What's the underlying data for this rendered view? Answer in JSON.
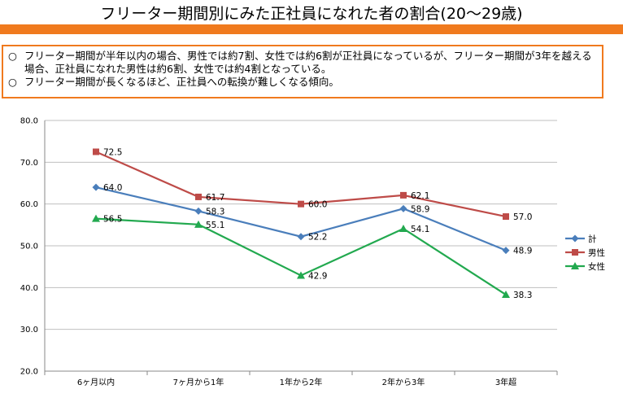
{
  "page": {
    "title": "フリーター期間別にみた正社員になれた者の割合(20～29歳)",
    "bullet_marker": "○",
    "summary": [
      "フリーター期間が半年以内の場合、男性では約7割、女性では約6割が正社員になっているが、フリーター期間が3年を越える場合、正社員になれた男性は約6割、女性では約4割となっている。",
      "フリーター期間が長くなるほど、正社員への転換が難しくなる傾向。"
    ]
  },
  "chart_data": {
    "type": "line",
    "categories": [
      "6ヶ月以内",
      "7ヶ月から1年",
      "1年から2年",
      "2年から3年",
      "3年超"
    ],
    "ylim": [
      20.0,
      80.0
    ],
    "yticks": [
      "20.0",
      "30.0",
      "40.0",
      "50.0",
      "60.0",
      "70.0",
      "80.0"
    ],
    "grid": true,
    "legend_position": "right",
    "series": [
      {
        "name": "計",
        "values": [
          64.0,
          58.3,
          52.2,
          58.9,
          48.9
        ],
        "labels": [
          "64.0",
          "58.3",
          "52.2",
          "58.9",
          "48.9"
        ],
        "color": "#4a7ebb",
        "marker": "diamond"
      },
      {
        "name": "男性",
        "values": [
          72.5,
          61.7,
          60.0,
          62.1,
          57.0
        ],
        "labels": [
          "72.5",
          "61.7",
          "60.0",
          "62.1",
          "57.0"
        ],
        "color": "#be4b48",
        "marker": "square"
      },
      {
        "name": "女性",
        "values": [
          56.5,
          55.1,
          42.9,
          54.1,
          38.3
        ],
        "labels": [
          "56.5",
          "55.1",
          "42.9",
          "54.1",
          "38.3"
        ],
        "color": "#22a94f",
        "marker": "triangle"
      }
    ]
  }
}
